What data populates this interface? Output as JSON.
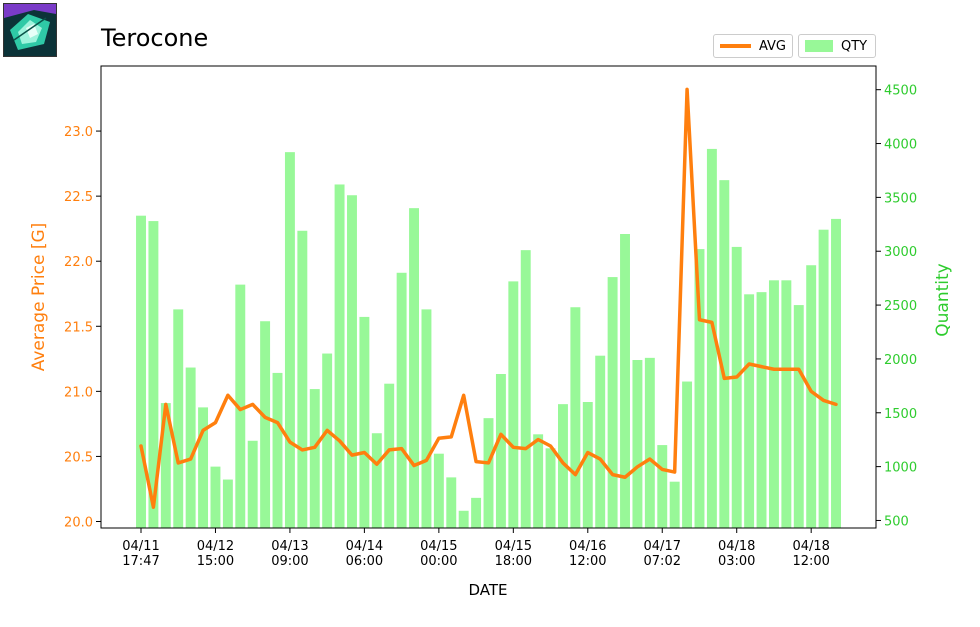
{
  "item_icon": "crystal-item-icon",
  "title": "Terocone",
  "legend": [
    {
      "label": "AVG",
      "color": "#ff7f0e"
    },
    {
      "label": "QTY",
      "color": "#98f898"
    }
  ],
  "chart_data": {
    "type": "bar+line",
    "title": "Terocone",
    "xlabel": "DATE",
    "ylabel_left": "Average Price [G]",
    "ylabel_right": "Quantity",
    "left_axis_color": "#ff7f0e",
    "right_axis_color": "#2ecc2e",
    "ylim_left": [
      19.95,
      23.5
    ],
    "ylim_right": [
      430,
      4720
    ],
    "yticks_left": [
      "20.0",
      "20.5",
      "21.0",
      "21.5",
      "22.0",
      "22.5",
      "23.0"
    ],
    "yticks_right": [
      "500",
      "1000",
      "1500",
      "2000",
      "2500",
      "3000",
      "3500",
      "4000",
      "4500"
    ],
    "xticks": [
      {
        "index": 0,
        "label": [
          "04/11",
          "17:47"
        ]
      },
      {
        "index": 6,
        "label": [
          "04/12",
          "15:00"
        ]
      },
      {
        "index": 12,
        "label": [
          "04/13",
          "09:00"
        ]
      },
      {
        "index": 18,
        "label": [
          "04/14",
          "06:00"
        ]
      },
      {
        "index": 24,
        "label": [
          "04/15",
          "00:00"
        ]
      },
      {
        "index": 30,
        "label": [
          "04/15",
          "18:00"
        ]
      },
      {
        "index": 36,
        "label": [
          "04/16",
          "12:00"
        ]
      },
      {
        "index": 42,
        "label": [
          "04/17",
          "07:02"
        ]
      },
      {
        "index": 48,
        "label": [
          "04/18",
          "03:00"
        ]
      },
      {
        "index": 54,
        "label": [
          "04/18",
          "12:00"
        ]
      }
    ],
    "series": [
      {
        "name": "QTY",
        "type": "bar",
        "axis": "right",
        "color": "#98f898",
        "values": [
          3330,
          3280,
          1590,
          2460,
          1920,
          1550,
          1000,
          880,
          2690,
          1240,
          2350,
          1870,
          3920,
          3190,
          1720,
          2050,
          3620,
          3520,
          2390,
          1310,
          1770,
          2800,
          3400,
          2460,
          1120,
          900,
          590,
          710,
          1450,
          1860,
          2720,
          3010,
          1300,
          1170,
          1580,
          2480,
          1600,
          2030,
          2760,
          3160,
          1990,
          2010,
          1200,
          860,
          1790,
          3020,
          3950,
          3660,
          3040,
          2600,
          2620,
          2730,
          2730,
          2500,
          2870,
          3200,
          3300
        ]
      },
      {
        "name": "AVG",
        "type": "line",
        "axis": "left",
        "color": "#ff7f0e",
        "values": [
          20.58,
          20.11,
          20.9,
          20.45,
          20.48,
          20.7,
          20.76,
          20.97,
          20.86,
          20.9,
          20.8,
          20.76,
          20.61,
          20.55,
          20.57,
          20.7,
          20.62,
          20.51,
          20.53,
          20.44,
          20.55,
          20.56,
          20.43,
          20.47,
          20.64,
          20.65,
          20.97,
          20.46,
          20.45,
          20.67,
          20.57,
          20.56,
          20.63,
          20.58,
          20.45,
          20.36,
          20.53,
          20.48,
          20.36,
          20.34,
          20.42,
          20.48,
          20.4,
          20.38,
          23.32,
          21.55,
          21.53,
          21.1,
          21.11,
          21.21,
          21.19,
          21.17,
          21.17,
          21.17,
          21.0,
          20.93,
          20.9
        ]
      }
    ],
    "grid": false,
    "legend_position": "top-right"
  }
}
